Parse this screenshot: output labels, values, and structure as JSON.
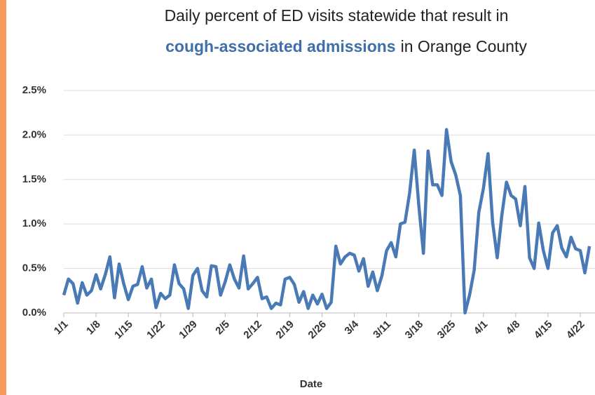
{
  "chart_data": {
    "type": "line",
    "title": {
      "line1": "Daily percent of ED visits statewide that result in",
      "line2_bold": "cough-associated admissions",
      "line2_rest": "in Orange County"
    },
    "xlabel": "Date",
    "categories": [
      "1/1",
      null,
      null,
      null,
      null,
      null,
      null,
      "1/8",
      null,
      null,
      null,
      null,
      null,
      null,
      "1/15",
      null,
      null,
      null,
      null,
      null,
      null,
      "1/22",
      null,
      null,
      null,
      null,
      null,
      null,
      "1/29",
      null,
      null,
      null,
      null,
      null,
      null,
      "2/5",
      null,
      null,
      null,
      null,
      null,
      null,
      "2/12",
      null,
      null,
      null,
      null,
      null,
      null,
      "2/19",
      null,
      null,
      null,
      null,
      null,
      null,
      "2/26",
      null,
      null,
      null,
      null,
      null,
      null,
      "3/4",
      null,
      null,
      null,
      null,
      null,
      null,
      "3/11",
      null,
      null,
      null,
      null,
      null,
      null,
      "3/18",
      null,
      null,
      null,
      null,
      null,
      null,
      "3/25",
      null,
      null,
      null,
      null,
      null,
      null,
      "4/1",
      null,
      null,
      null,
      null,
      null,
      null,
      "4/8",
      null,
      null,
      null,
      null,
      null,
      null,
      "4/15",
      null,
      null,
      null,
      null,
      null,
      null,
      "4/22",
      null,
      null
    ],
    "series": [
      {
        "name": "Cough-associated admissions",
        "color": "#4a7ab5",
        "values": [
          0.2,
          0.38,
          0.33,
          0.11,
          0.34,
          0.2,
          0.25,
          0.43,
          0.27,
          0.43,
          0.63,
          0.17,
          0.55,
          0.33,
          0.15,
          0.3,
          0.32,
          0.52,
          0.28,
          0.38,
          0.06,
          0.22,
          0.16,
          0.2,
          0.54,
          0.33,
          0.27,
          0.05,
          0.42,
          0.5,
          0.25,
          0.18,
          0.53,
          0.52,
          0.2,
          0.35,
          0.54,
          0.38,
          0.28,
          0.64,
          0.27,
          0.33,
          0.4,
          0.16,
          0.18,
          0.05,
          0.11,
          0.09,
          0.38,
          0.4,
          0.32,
          0.12,
          0.24,
          0.05,
          0.2,
          0.1,
          0.21,
          0.05,
          0.12,
          0.75,
          0.55,
          0.63,
          0.67,
          0.65,
          0.47,
          0.61,
          0.3,
          0.46,
          0.25,
          0.42,
          0.7,
          0.79,
          0.63,
          1.0,
          1.02,
          1.35,
          1.83,
          1.2,
          0.67,
          1.82,
          1.44,
          1.44,
          1.32,
          2.06,
          1.7,
          1.55,
          1.32,
          0.0,
          0.2,
          0.48,
          1.13,
          1.4,
          1.79,
          1.02,
          0.62,
          1.1,
          1.47,
          1.32,
          1.28,
          0.98,
          1.42,
          0.62,
          0.5,
          1.01,
          0.7,
          0.5,
          0.9,
          0.98,
          0.73,
          0.63,
          0.85,
          0.72,
          0.7,
          0.45,
          0.75
        ]
      }
    ],
    "ylim": [
      0,
      2.5
    ],
    "yticks": [
      {
        "value": 0,
        "label": "0.0%"
      },
      {
        "value": 0.5,
        "label": "0.5%"
      },
      {
        "value": 1,
        "label": "1.0%"
      },
      {
        "value": 1.5,
        "label": "1.5%"
      },
      {
        "value": 2,
        "label": "2.0%"
      },
      {
        "value": 2.5,
        "label": "2.5%"
      }
    ],
    "grid": true
  }
}
